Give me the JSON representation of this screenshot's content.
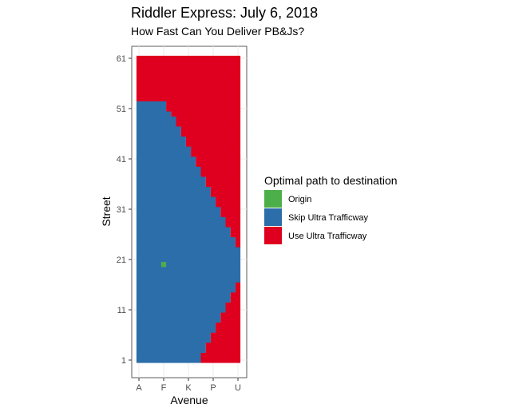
{
  "chart_data": {
    "type": "heatmap",
    "title": "Riddler Express: July 6, 2018",
    "subtitle": "How Fast Can You Deliver PB&Js?",
    "xlabel": "Avenue",
    "ylabel": "Street",
    "x_ticks": [
      "A",
      "F",
      "K",
      "P",
      "U"
    ],
    "y_ticks": [
      1,
      11,
      21,
      31,
      41,
      51,
      61
    ],
    "x_range": [
      1,
      21
    ],
    "y_range": [
      1,
      61
    ],
    "avenues": 21,
    "streets": 61,
    "legend": {
      "title": "Optimal path to destination",
      "position": "right",
      "items": [
        {
          "label": "Origin",
          "color": "#4DAF4A"
        },
        {
          "label": "Skip Ultra Trafficway",
          "color": "#2C6EAA"
        },
        {
          "label": "Use Ultra Trafficway",
          "color": "#DE001E"
        }
      ]
    },
    "origin": {
      "avenue": "F",
      "street": 20
    },
    "skip_region_max_avenue_by_street": [
      {
        "street": 1,
        "max_avenue": 13
      },
      {
        "street": 3,
        "max_avenue": 14
      },
      {
        "street": 5,
        "max_avenue": 15
      },
      {
        "street": 7,
        "max_avenue": 16
      },
      {
        "street": 9,
        "max_avenue": 17
      },
      {
        "street": 11,
        "max_avenue": 18
      },
      {
        "street": 13,
        "max_avenue": 19
      },
      {
        "street": 15,
        "max_avenue": 20
      },
      {
        "street": 17,
        "max_avenue": 21
      },
      {
        "street": 21,
        "max_avenue": 21
      },
      {
        "street": 23,
        "max_avenue": 21
      },
      {
        "street": 24,
        "max_avenue": 20
      },
      {
        "street": 26,
        "max_avenue": 19
      },
      {
        "street": 28,
        "max_avenue": 18
      },
      {
        "street": 30,
        "max_avenue": 17
      },
      {
        "street": 32,
        "max_avenue": 16
      },
      {
        "street": 34,
        "max_avenue": 15
      },
      {
        "street": 36,
        "max_avenue": 14
      },
      {
        "street": 38,
        "max_avenue": 13
      },
      {
        "street": 40,
        "max_avenue": 12
      },
      {
        "street": 42,
        "max_avenue": 11
      },
      {
        "street": 44,
        "max_avenue": 10
      },
      {
        "street": 46,
        "max_avenue": 9
      },
      {
        "street": 48,
        "max_avenue": 8
      },
      {
        "street": 50,
        "max_avenue": 7
      },
      {
        "street": 51,
        "max_avenue": 6
      },
      {
        "street": 52,
        "max_avenue": 6
      },
      {
        "street": 53,
        "max_avenue": 0
      },
      {
        "street": 61,
        "max_avenue": 0
      }
    ]
  }
}
